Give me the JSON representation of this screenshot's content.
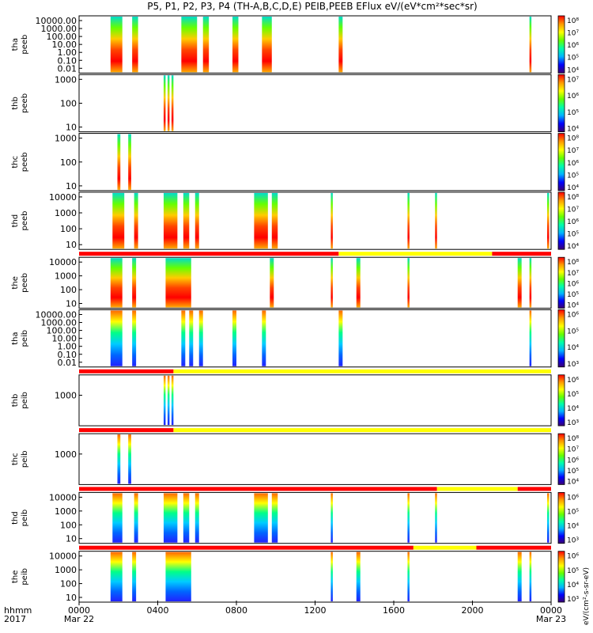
{
  "chart_data": {
    "type": "heatmap",
    "title": "P5, P1, P2, P3, P4 (TH-A,B,C,D,E) PEIB,PEEB EFlux eV/(eV*cm²*sec*sr)",
    "x_axis": {
      "row_labels": [
        "hhmm",
        "2017"
      ],
      "ticks": [
        {
          "hour": 0,
          "label": "0000",
          "date": "Mar 22"
        },
        {
          "hour": 4,
          "label": "0400",
          "date": ""
        },
        {
          "hour": 8,
          "label": "0800",
          "date": ""
        },
        {
          "hour": 12,
          "label": "1200",
          "date": ""
        },
        {
          "hour": 16,
          "label": "1600",
          "date": ""
        },
        {
          "hour": 20,
          "label": "2000",
          "date": ""
        },
        {
          "hour": 24,
          "label": "0000",
          "date": "Mar 23"
        }
      ],
      "range_hours": [
        0,
        24
      ]
    },
    "colorbar_label": "eV/(cm²-s-sr-eV)",
    "colormap": [
      "#3c0070",
      "#0000ff",
      "#00b4ff",
      "#00ffaa",
      "#66ff00",
      "#ffff00",
      "#ff9900",
      "#ff0000"
    ],
    "panels": [
      {
        "id": "tha-peeb",
        "probe": "tha",
        "inst": "peeb",
        "y_ticks": [
          "10000.00",
          "1000.00",
          "100.00",
          "10.00",
          "1.00",
          "0.10",
          "0.01"
        ],
        "cbar_ticks": [
          "10⁸",
          "10⁷",
          "10⁶",
          "10⁵",
          "10⁴"
        ],
        "mode_bar": false,
        "intervals": [
          [
            1.6,
            2.2
          ],
          [
            2.7,
            3.0
          ],
          [
            5.2,
            6.0
          ],
          [
            6.3,
            6.6
          ],
          [
            7.8,
            8.1
          ],
          [
            9.3,
            9.8
          ],
          [
            13.2,
            13.4
          ],
          [
            22.9,
            23.0
          ]
        ]
      },
      {
        "id": "thb-peeb",
        "probe": "thb",
        "inst": "peeb",
        "y_ticks": [
          "1000",
          "100",
          "10"
        ],
        "cbar_ticks": [
          "10⁷",
          "10⁶",
          "10⁵",
          "10⁴"
        ],
        "mode_bar": false,
        "intervals": [
          [
            4.3,
            4.4
          ],
          [
            4.5,
            4.6
          ],
          [
            4.7,
            4.8
          ]
        ]
      },
      {
        "id": "thc-peeb",
        "probe": "thc",
        "inst": "peeb",
        "y_ticks": [
          "1000",
          "100",
          "10"
        ],
        "cbar_ticks": [
          "10⁸",
          "10⁷",
          "10⁶",
          "10⁵",
          "10⁴"
        ],
        "mode_bar": false,
        "intervals": [
          [
            1.95,
            2.1
          ],
          [
            2.5,
            2.65
          ]
        ]
      },
      {
        "id": "thd-peeb",
        "probe": "thd",
        "inst": "peeb",
        "y_ticks": [
          "10000",
          "1000",
          "100",
          "10"
        ],
        "cbar_ticks": [
          "10⁸",
          "10⁷",
          "10⁶",
          "10⁵",
          "10⁴"
        ],
        "mode_bar": false,
        "intervals": [
          [
            1.7,
            2.3
          ],
          [
            2.8,
            3.0
          ],
          [
            4.3,
            5.0
          ],
          [
            5.3,
            5.6
          ],
          [
            5.9,
            6.1
          ],
          [
            8.9,
            9.6
          ],
          [
            9.8,
            10.1
          ],
          [
            12.8,
            12.9
          ],
          [
            16.7,
            16.8
          ],
          [
            18.1,
            18.2
          ],
          [
            23.8,
            23.9
          ]
        ]
      },
      {
        "id": "the-peeb",
        "probe": "the",
        "inst": "peeb",
        "y_ticks": [
          "10000",
          "1000",
          "100",
          "10"
        ],
        "cbar_ticks": [
          "10⁸",
          "10⁷",
          "10⁶",
          "10⁵",
          "10⁴"
        ],
        "mode_bar": true,
        "mode_segments": [
          [
            0,
            13.2,
            "#ff0000"
          ],
          [
            13.2,
            21.0,
            "#ffff00"
          ],
          [
            21.0,
            24,
            "#ff0000"
          ]
        ],
        "intervals": [
          [
            1.6,
            2.2
          ],
          [
            2.7,
            2.9
          ],
          [
            4.4,
            5.7
          ],
          [
            9.7,
            9.9
          ],
          [
            12.8,
            12.9
          ],
          [
            14.1,
            14.3
          ],
          [
            16.7,
            16.8
          ],
          [
            22.3,
            22.5
          ],
          [
            22.9,
            23.0
          ]
        ]
      },
      {
        "id": "tha-peib",
        "probe": "tha",
        "inst": "peib",
        "y_ticks": [
          "10000.00",
          "1000.00",
          "100.00",
          "10.00",
          "1.00",
          "0.10",
          "0.01"
        ],
        "cbar_ticks": [
          "10⁶",
          "10⁵",
          "10⁴",
          "10³"
        ],
        "mode_bar": false,
        "intervals": [
          [
            1.6,
            2.2
          ],
          [
            2.7,
            2.9
          ],
          [
            5.2,
            5.4
          ],
          [
            5.6,
            5.8
          ],
          [
            6.1,
            6.3
          ],
          [
            7.8,
            8.0
          ],
          [
            9.3,
            9.5
          ],
          [
            13.2,
            13.4
          ],
          [
            22.9,
            23.0
          ]
        ]
      },
      {
        "id": "thb-peib",
        "probe": "thb",
        "inst": "peib",
        "y_ticks": [
          "1000"
        ],
        "cbar_ticks": [
          "10⁶",
          "10⁵",
          "10⁴",
          "10³"
        ],
        "mode_bar": true,
        "mode_segments": [
          [
            0,
            4.8,
            "#ff0000"
          ],
          [
            4.8,
            24,
            "#ffff00"
          ]
        ],
        "intervals": [
          [
            4.3,
            4.4
          ],
          [
            4.5,
            4.6
          ],
          [
            4.7,
            4.8
          ]
        ]
      },
      {
        "id": "thc-peib",
        "probe": "thc",
        "inst": "peib",
        "y_ticks": [
          "1000"
        ],
        "cbar_ticks": [
          "10⁸",
          "10⁷",
          "10⁶",
          "10⁵",
          "10⁴"
        ],
        "mode_bar": true,
        "mode_segments": [
          [
            0,
            4.8,
            "#ff0000"
          ],
          [
            4.8,
            24,
            "#ffff00"
          ]
        ],
        "intervals": [
          [
            1.95,
            2.1
          ],
          [
            2.5,
            2.65
          ]
        ]
      },
      {
        "id": "thd-peib",
        "probe": "thd",
        "inst": "peib",
        "y_ticks": [
          "10000",
          "1000",
          "100",
          "10"
        ],
        "cbar_ticks": [
          "10⁶",
          "10⁵",
          "10⁴",
          "10³"
        ],
        "mode_bar": true,
        "mode_segments": [
          [
            0,
            18.2,
            "#ff0000"
          ],
          [
            18.2,
            22.3,
            "#ffff00"
          ],
          [
            22.3,
            24,
            "#ff0000"
          ]
        ],
        "intervals": [
          [
            1.7,
            2.2
          ],
          [
            2.8,
            3.0
          ],
          [
            4.3,
            5.0
          ],
          [
            5.3,
            5.6
          ],
          [
            5.9,
            6.1
          ],
          [
            8.9,
            9.6
          ],
          [
            9.8,
            10.1
          ],
          [
            12.8,
            12.9
          ],
          [
            16.7,
            16.8
          ],
          [
            18.1,
            18.2
          ],
          [
            23.8,
            23.9
          ]
        ]
      },
      {
        "id": "the-peib",
        "probe": "the",
        "inst": "peib",
        "y_ticks": [
          "10000",
          "1000",
          "100",
          "10"
        ],
        "cbar_ticks": [
          "10⁶",
          "10⁵",
          "10⁴",
          "10³"
        ],
        "mode_bar": true,
        "mode_segments": [
          [
            0,
            17.0,
            "#ff0000"
          ],
          [
            17.0,
            20.2,
            "#ffff00"
          ],
          [
            20.2,
            24,
            "#ff0000"
          ]
        ],
        "intervals": [
          [
            1.6,
            2.2
          ],
          [
            2.7,
            2.9
          ],
          [
            4.4,
            5.7
          ],
          [
            12.8,
            12.9
          ],
          [
            14.1,
            14.3
          ],
          [
            16.7,
            16.8
          ],
          [
            22.3,
            22.5
          ],
          [
            22.9,
            23.0
          ]
        ]
      }
    ]
  }
}
